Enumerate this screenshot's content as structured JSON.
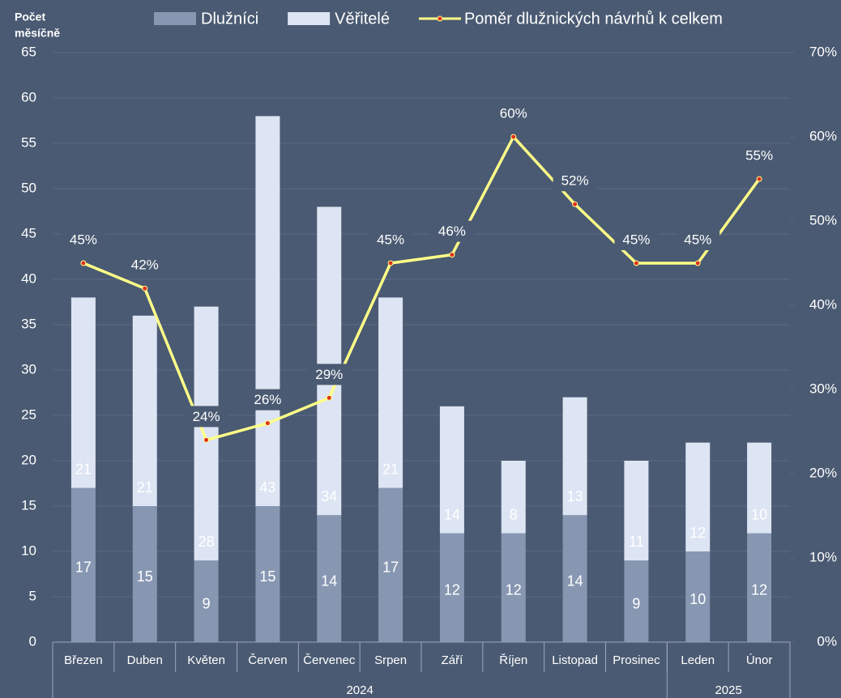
{
  "chart_data": {
    "type": "bar",
    "stacked": true,
    "ylabel": [
      "Počet",
      "měsíčně"
    ],
    "categories": [
      "Březen",
      "Duben",
      "Květen",
      "Červen",
      "Červenec",
      "Srpen",
      "Září",
      "Říjen",
      "Listopad",
      "Prosinec",
      "Leden",
      "Únor"
    ],
    "groups": [
      {
        "label": "2024",
        "count": 10
      },
      {
        "label": "2025",
        "count": 2
      }
    ],
    "series": [
      {
        "name": "Dlužníci",
        "type": "bar",
        "color": "#8797b2",
        "label_color": "#ffffff",
        "values": [
          17,
          15,
          9,
          15,
          14,
          17,
          12,
          12,
          14,
          9,
          10,
          12
        ]
      },
      {
        "name": "Věřitelé",
        "type": "bar",
        "color": "#dde4f3",
        "label_color": "#44546a",
        "values": [
          21,
          21,
          28,
          43,
          34,
          21,
          14,
          8,
          13,
          11,
          12,
          10
        ]
      },
      {
        "name": "Poměr dlužnických návrhů k celkem",
        "type": "line",
        "axis": "y2",
        "color": "#ffff88",
        "marker_color": "#e03020",
        "label_color": "#f7d96a",
        "values": [
          45,
          42,
          24,
          26,
          29,
          45,
          46,
          60,
          52,
          45,
          45,
          55
        ],
        "value_labels": [
          "45%",
          "42%",
          "24%",
          "26%",
          "29%",
          "45%",
          "46%",
          "60%",
          "52%",
          "45%",
          "45%",
          "55%"
        ]
      }
    ],
    "ylim": [
      0,
      65
    ],
    "yticks": [
      0,
      5,
      10,
      15,
      20,
      25,
      30,
      35,
      40,
      45,
      50,
      55,
      60,
      65
    ],
    "y2lim": [
      0,
      70
    ],
    "y2ticks": [
      {
        "value": 0,
        "label": "0%"
      },
      {
        "value": 10,
        "label": "10%"
      },
      {
        "value": 20,
        "label": "20%"
      },
      {
        "value": 30,
        "label": "30%"
      },
      {
        "value": 40,
        "label": "40%"
      },
      {
        "value": 50,
        "label": "50%"
      },
      {
        "value": 60,
        "label": "60%"
      },
      {
        "value": 70,
        "label": "70%"
      }
    ],
    "grid": true,
    "legend": "top"
  }
}
